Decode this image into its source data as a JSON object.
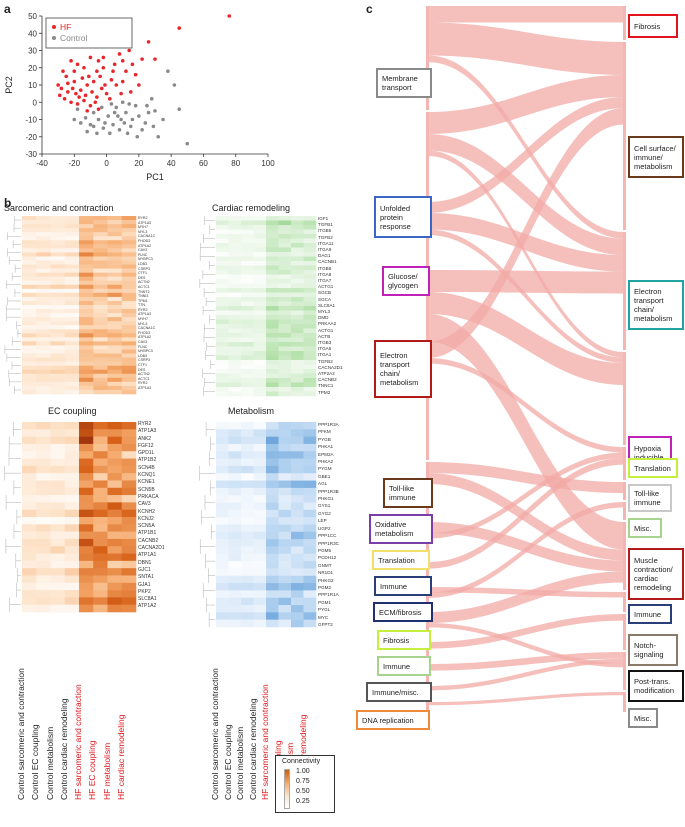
{
  "panels": {
    "a": "a",
    "b": "b",
    "c": "c"
  },
  "chart_data": [
    {
      "type": "scatter",
      "xlabel": "PC1",
      "ylabel": "PC2",
      "xlim": [
        -40,
        100
      ],
      "ylim": [
        -30,
        50
      ],
      "xticks": [
        "-40",
        "-20",
        "0",
        "20",
        "40",
        "60",
        "80",
        "100"
      ],
      "yticks": [
        "50",
        "40",
        "30",
        "20",
        "10",
        "0",
        "-10",
        "-20",
        "-30"
      ],
      "legend": [
        "HF",
        "Control"
      ],
      "colors": {
        "HF": "#e8262b",
        "Control": "#8a8a8a"
      },
      "series": [
        {
          "name": "HF",
          "points": [
            [
              76,
              50
            ],
            [
              45,
              43
            ],
            [
              30,
              25
            ],
            [
              -22,
              24
            ],
            [
              -18,
              22
            ],
            [
              -10,
              26
            ],
            [
              -5,
              24
            ],
            [
              -2,
              20
            ],
            [
              5,
              22
            ],
            [
              8,
              28
            ],
            [
              12,
              18
            ],
            [
              18,
              16
            ],
            [
              22,
              25
            ],
            [
              14,
              30
            ],
            [
              -25,
              15
            ],
            [
              -20,
              12
            ],
            [
              -15,
              14
            ],
            [
              -12,
              10
            ],
            [
              -8,
              12
            ],
            [
              -4,
              15
            ],
            [
              -1,
              10
            ],
            [
              3,
              13
            ],
            [
              6,
              10
            ],
            [
              10,
              12
            ],
            [
              -28,
              8
            ],
            [
              -24,
              6
            ],
            [
              -19,
              5
            ],
            [
              -16,
              7
            ],
            [
              -13,
              4
            ],
            [
              -9,
              6
            ],
            [
              -6,
              3
            ],
            [
              -3,
              8
            ],
            [
              0,
              5
            ],
            [
              2,
              2
            ],
            [
              -26,
              2
            ],
            [
              -22,
              0
            ],
            [
              -18,
              -1
            ],
            [
              -14,
              1
            ],
            [
              -10,
              -2
            ],
            [
              -7,
              0
            ],
            [
              -30,
              10
            ],
            [
              -27,
              18
            ],
            [
              -14,
              20
            ],
            [
              -6,
              18
            ],
            [
              4,
              18
            ],
            [
              16,
              22
            ],
            [
              26,
              35
            ],
            [
              20,
              10
            ],
            [
              15,
              6
            ],
            [
              9,
              5
            ],
            [
              -20,
              18
            ],
            [
              -17,
              3
            ],
            [
              -11,
              15
            ],
            [
              -2,
              26
            ],
            [
              10,
              24
            ],
            [
              -24,
              11
            ],
            [
              -12,
              -5
            ],
            [
              -5,
              -4
            ],
            [
              -29,
              4
            ],
            [
              -21,
              8
            ]
          ]
        },
        {
          "name": "Control",
          "points": [
            [
              50,
              -24
            ],
            [
              45,
              -4
            ],
            [
              42,
              10
            ],
            [
              38,
              18
            ],
            [
              35,
              -10
            ],
            [
              30,
              -5
            ],
            [
              28,
              2
            ],
            [
              24,
              -12
            ],
            [
              20,
              -8
            ],
            [
              18,
              -2
            ],
            [
              15,
              -14
            ],
            [
              12,
              -6
            ],
            [
              9,
              -10
            ],
            [
              6,
              -3
            ],
            [
              4,
              -13
            ],
            [
              1,
              -8
            ],
            [
              -2,
              -15
            ],
            [
              -5,
              -10
            ],
            [
              -8,
              -6
            ],
            [
              -10,
              -13
            ],
            [
              -13,
              -9
            ],
            [
              -16,
              -12
            ],
            [
              -18,
              -4
            ],
            [
              -20,
              -10
            ],
            [
              -3,
              -3
            ],
            [
              2,
              -18
            ],
            [
              8,
              -16
            ],
            [
              14,
              -1
            ],
            [
              22,
              -16
            ],
            [
              26,
              -6
            ],
            [
              32,
              -20
            ],
            [
              -6,
              -18
            ],
            [
              -12,
              -17
            ],
            [
              5,
              -6
            ],
            [
              10,
              0
            ],
            [
              16,
              -10
            ],
            [
              19,
              -20
            ],
            [
              -1,
              -12
            ],
            [
              3,
              -1
            ],
            [
              7,
              -8
            ],
            [
              11,
              -12
            ],
            [
              -8,
              -14
            ],
            [
              13,
              -18
            ],
            [
              25,
              -2
            ],
            [
              29,
              -14
            ]
          ]
        }
      ]
    },
    {
      "type": "heatmap",
      "title": "Sarcomeric and contraction",
      "genes": [
        "RYR2",
        "ATP1A3",
        "MYH7",
        "MYL3",
        "CACNA1C",
        "FHOD3",
        "ATP1A2",
        "CAV3",
        "FLNC",
        "MYBPC3",
        "LDB3",
        "CSRP3",
        "CTF1",
        "DES",
        "ACTN2",
        "ACTC1",
        "TNNT2",
        "TNNI3",
        "TPM1",
        "TTN"
      ],
      "columns": [
        "Control sarcomeric and contraction",
        "Control EC coupling",
        "Control metabolism",
        "Control cardiac remodeling",
        "HF sarcomeric and contraction",
        "HF EC coupling",
        "HF metabolism",
        "HF cardiac remodeling"
      ]
    },
    {
      "type": "heatmap",
      "title": "Cardiac remodeling",
      "genes": [
        "IGF1",
        "TGFB1",
        "ITGB5",
        "TGFB2",
        "ITGA11",
        "ITGA9",
        "DAG1",
        "CACNB1",
        "ITGB8",
        "ITGA8",
        "ITGA7",
        "ACTG1",
        "SGCB",
        "SGCA",
        "SLC8A1",
        "MYL3",
        "DMD",
        "PRKAA2",
        "ACTG1",
        "ACTB",
        "ITGB3",
        "ITGA5",
        "ITGA1",
        "TGFB2",
        "CACNA2D1",
        "ATP2A2",
        "CACNB2",
        "TNNC1",
        "TPM2",
        "CACNA2D3",
        "CACNA2D2",
        "TNNI3",
        "TTN",
        "RYR2",
        "SGCG",
        "MYBPC3",
        "SGCD",
        "MYH7"
      ]
    },
    {
      "type": "heatmap",
      "title": "EC coupling",
      "genes": [
        "RYR2",
        "ATP1A3",
        "ANK2",
        "FGF12",
        "GPD1L",
        "ATP1B2",
        "SCN4B",
        "KCNQ1",
        "KCNE1",
        "SCN5B",
        "PRKACA",
        "CAV3",
        "KCNH2",
        "KCNJ2",
        "SCN5A",
        "ATP1B1",
        "CACNB2",
        "CACNA2D1",
        "ATP1A1",
        "DBN1",
        "GJC1",
        "SNTA1",
        "GJA1",
        "PKP2",
        "SLC8A1",
        "ATP1A2"
      ]
    },
    {
      "type": "heatmap",
      "title": "Metabolism",
      "genes": [
        "PPP1R3A",
        "PFKM",
        "PYGB",
        "PHKA1",
        "EPM2A",
        "PHKA2",
        "PYGM",
        "GBE1",
        "AGL",
        "PPP1R3B",
        "PHKG1",
        "GYS1",
        "GYG2",
        "LEP",
        "UGP2",
        "PPP1CC",
        "PPP1R3C",
        "PGM5",
        "PCDH12",
        "GNMT",
        "NR1D1",
        "PHKG2",
        "PGM2",
        "PPP1R1A",
        "PGM1",
        "PYGL",
        "MYC",
        "GFPT2"
      ]
    }
  ],
  "heatmap_cols": {
    "control": [
      "Control sarcomeric and contraction",
      "Control EC coupling",
      "Control metabolism",
      "Control cardiac remodeling"
    ],
    "hf": [
      "HF sarcomeric and contraction",
      "HF EC coupling",
      "HF metabolism",
      "HF cardiac remodeling"
    ]
  },
  "connectivity": {
    "title": "Connectivity",
    "ticks": [
      "1.00",
      "0.75",
      "0.50",
      "0.25"
    ]
  },
  "sankey": {
    "left": [
      {
        "label": "Membrane transport",
        "color": "#8a8a8a"
      },
      {
        "label": "Unfolded protein response",
        "color": "#3a66c4"
      },
      {
        "label": "Glucose/ glycogen",
        "color": "#c022b8"
      },
      {
        "label": "Electron transport chain/ metabolism",
        "color": "#b31b1b"
      },
      {
        "label": "Toll-like immune",
        "color": "#6b3a1a"
      },
      {
        "label": "Oxidative metabolism",
        "color": "#7a3ea8"
      },
      {
        "label": "Translation",
        "color": "#f2e06a"
      },
      {
        "label": "Immune",
        "color": "#2a3f7a"
      },
      {
        "label": "ECM/fibrosis",
        "color": "#1f2f6f"
      },
      {
        "label": "Fibrosis",
        "color": "#c5ef3f"
      },
      {
        "label": "Immune",
        "color": "#a6d48d"
      },
      {
        "label": "Immune/misc.",
        "color": "#555555"
      },
      {
        "label": "DNA replication",
        "color": "#ef8a3a"
      }
    ],
    "right": [
      {
        "label": "Fibrosis",
        "color": "#e0141a"
      },
      {
        "label": "Cell surface/ immune/ metabolism",
        "color": "#6b3a1a"
      },
      {
        "label": "Electron transport chain/ metabolism",
        "color": "#1fa3a3"
      },
      {
        "label": "Hypoxia inducible factor",
        "color": "#c022b8"
      },
      {
        "label": "Translation",
        "color": "#c5ef3f"
      },
      {
        "label": "Toll-like immune",
        "color": "#c8c8c8"
      },
      {
        "label": "Misc.",
        "color": "#a6d48d"
      },
      {
        "label": "Muscle contraction/ cardiac remodeling",
        "color": "#b31b1b"
      },
      {
        "label": "Immune",
        "color": "#2a3f7a"
      },
      {
        "label": "Notch- signaling",
        "color": "#8a7a6a"
      },
      {
        "label": "Post-trans. modification",
        "color": "#111111"
      },
      {
        "label": "Misc.",
        "color": "#8a8a8a"
      }
    ]
  }
}
